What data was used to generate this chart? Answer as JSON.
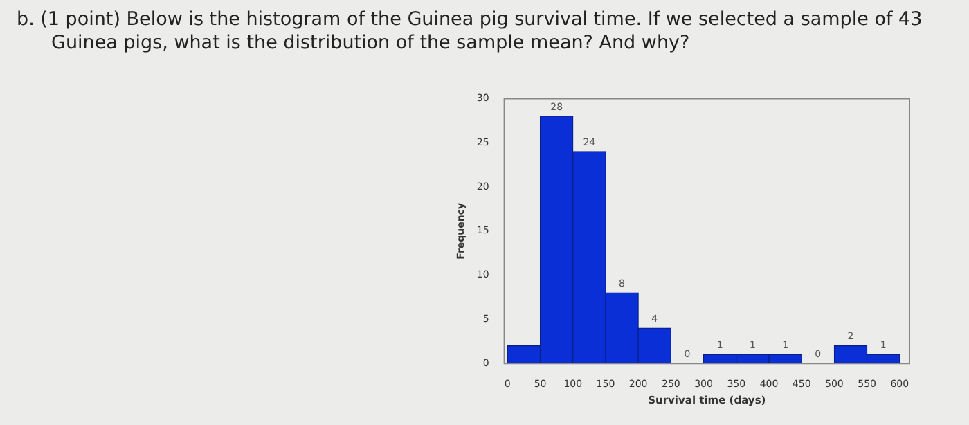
{
  "chart_data": {
    "type": "histogram",
    "title": "b. (1 point) Below is the histogram of the Guinea pig survival time. If we selected a sample of 43 Guinea pigs, what is the distribution of the sample mean? And why?",
    "xlabel": "Survival time (days)",
    "ylabel": "Frequency",
    "bins": [
      0,
      50,
      100,
      150,
      200,
      250,
      300,
      350,
      400,
      450,
      500,
      550,
      600
    ],
    "values": [
      2,
      28,
      24,
      8,
      4,
      0,
      1,
      1,
      1,
      0,
      2,
      1
    ],
    "value_labels": [
      null,
      "28",
      "24",
      "8",
      "4",
      "0",
      "1",
      "1",
      "1",
      "0",
      "2",
      "1"
    ],
    "color": "#0a2fd6",
    "xlim": [
      -5,
      615
    ],
    "xticks": [
      0,
      50,
      100,
      150,
      200,
      250,
      300,
      350,
      400,
      450,
      500,
      550,
      600
    ],
    "ylim": [
      0,
      30
    ],
    "yticks": [
      0,
      5,
      10,
      15,
      20,
      25,
      30
    ],
    "grid": false
  }
}
